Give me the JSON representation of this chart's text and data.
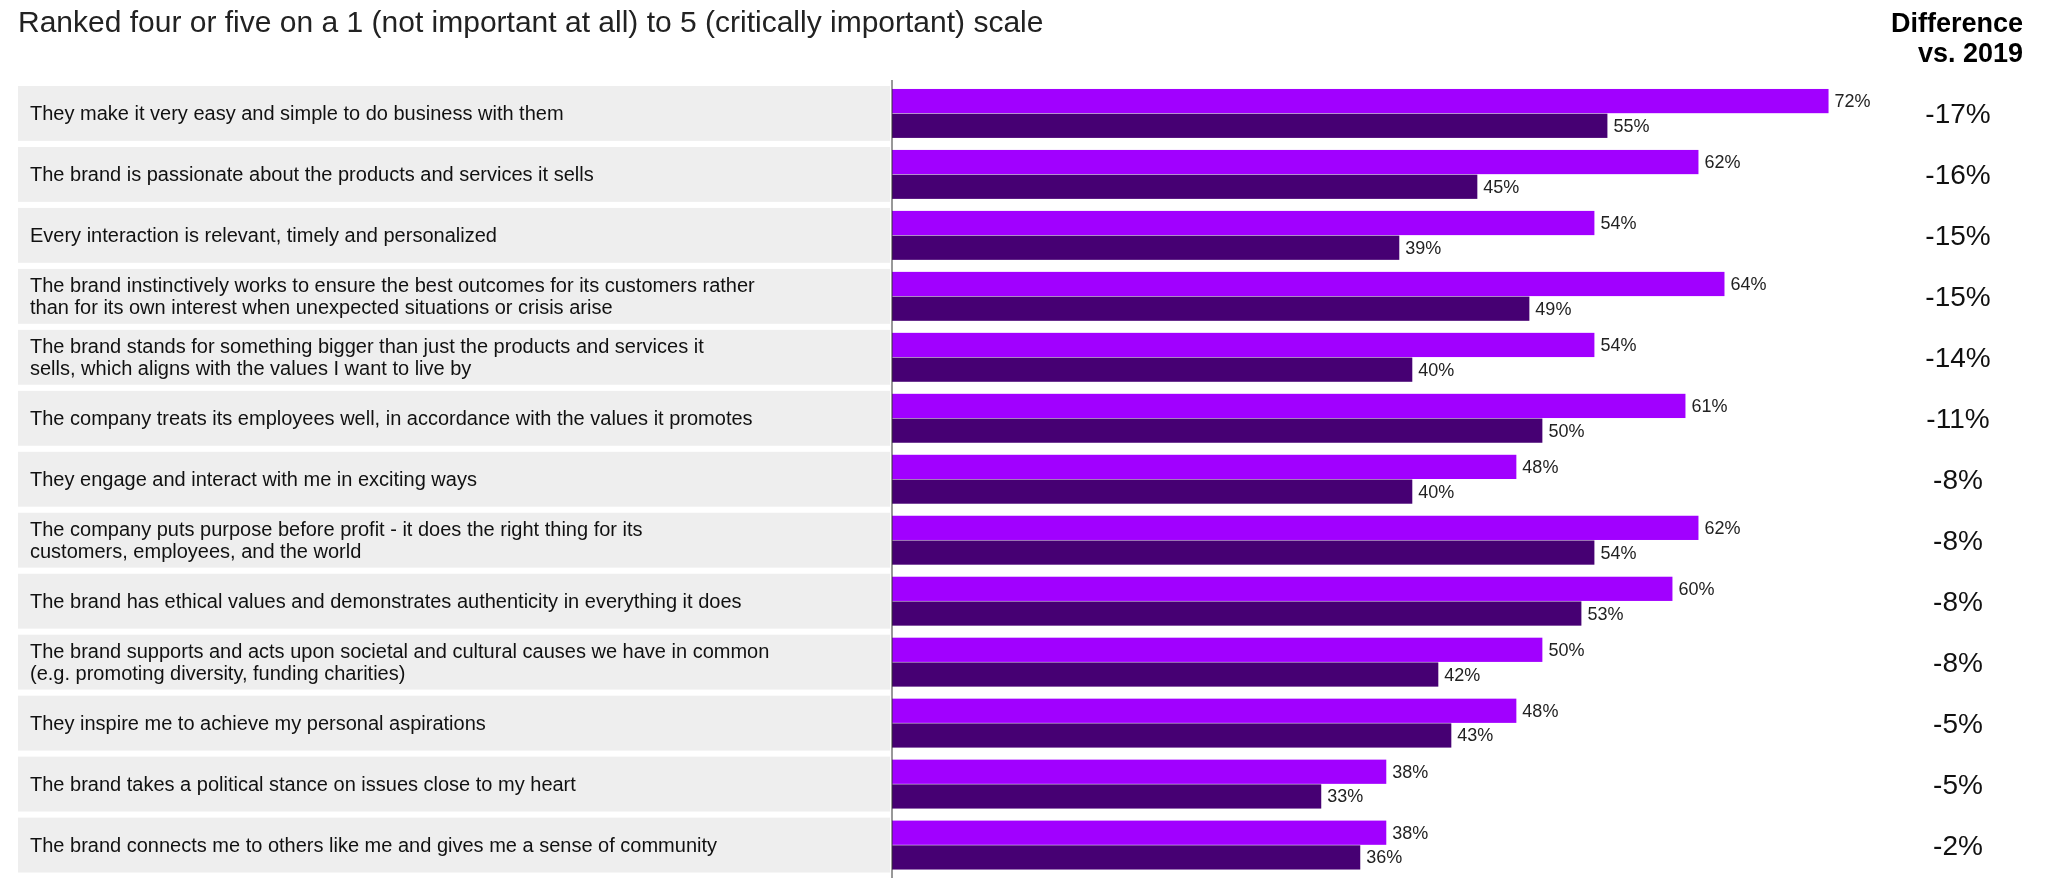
{
  "chart_data": {
    "type": "bar",
    "orientation": "horizontal",
    "title": "Ranked four or five on a 1 (not important at all) to 5 (critically important) scale",
    "categories": [
      "They make it very easy and simple to do business with them",
      "The brand is passionate about the products and services it sells",
      "Every interaction is relevant, timely and personalized",
      "The brand instinctively works to ensure the best outcomes for its customers rather than for its own interest when unexpected situations or crisis arise",
      "The brand stands for something bigger than just the products and services it sells, which aligns with the values I want to live by",
      "The company treats its employees well, in accordance with the values it promotes",
      "They engage and interact with me in exciting ways",
      "The company puts purpose before profit - it does the right thing for its customers, employees, and the world",
      "The brand has ethical values and demonstrates authenticity in everything it does",
      "The brand supports and acts upon societal and cultural causes we have in common (e.g. promoting diversity, funding charities)",
      "They inspire me to achieve my personal aspirations",
      "The brand takes a political stance on issues close to my heart",
      "The brand connects me to others like me and gives me a sense of community"
    ],
    "series": [
      {
        "color": "#a100ff",
        "values": [
          72,
          62,
          54,
          64,
          54,
          61,
          48,
          62,
          60,
          50,
          48,
          38,
          38
        ],
        "value_labels": [
          "72%",
          "62%",
          "54%",
          "64%",
          "54%",
          "61%",
          "48%",
          "62%",
          "60%",
          "50%",
          "48%",
          "38%",
          "38%"
        ]
      },
      {
        "color": "#460073",
        "values": [
          55,
          45,
          39,
          49,
          40,
          50,
          40,
          54,
          53,
          42,
          43,
          33,
          36
        ],
        "value_labels": [
          "55%",
          "45%",
          "39%",
          "49%",
          "40%",
          "50%",
          "40%",
          "54%",
          "53%",
          "42%",
          "43%",
          "33%",
          "36%"
        ]
      }
    ],
    "annotations": [
      "Difference vs. 2019",
      "-17%",
      "-16%",
      "-15%",
      "-15%",
      "-14%",
      "-11%",
      "-8%",
      "-8%",
      "-8%",
      "-8%",
      "-5%",
      "-5%",
      "-2%"
    ]
  }
}
